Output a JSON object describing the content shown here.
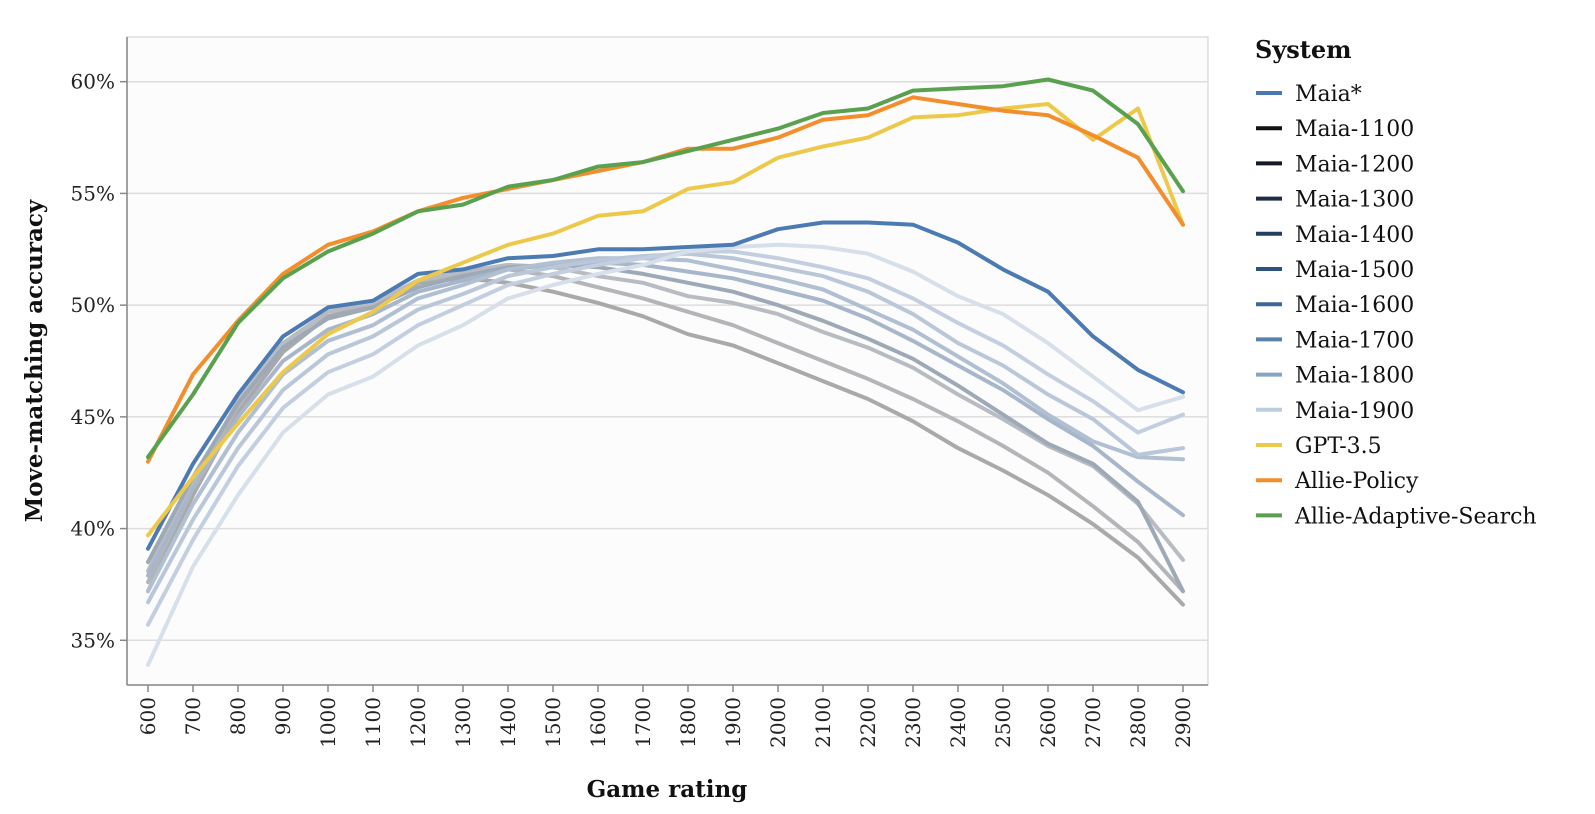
{
  "chart_data": {
    "type": "line",
    "xlabel": "Game rating",
    "ylabel": "Move-matching accuracy",
    "x": [
      600,
      700,
      800,
      900,
      1000,
      1100,
      1200,
      1300,
      1400,
      1500,
      1600,
      1700,
      1800,
      1900,
      2000,
      2100,
      2200,
      2300,
      2400,
      2500,
      2600,
      2700,
      2800,
      2900
    ],
    "ylim": [
      33,
      62
    ],
    "yticks": [
      35,
      40,
      45,
      50,
      55,
      60
    ],
    "ytick_labels": [
      "35%",
      "40%",
      "45%",
      "50%",
      "55%",
      "60%"
    ],
    "grid": "horizontal",
    "legend": {
      "title": "System",
      "position": "right"
    },
    "series": [
      {
        "name": "Maia-1100",
        "color": "#111111",
        "line_color": "#a9a9a9",
        "values": [
          37.2,
          41.5,
          45.2,
          47.9,
          49.5,
          50.0,
          51.0,
          51.2,
          51.0,
          50.6,
          50.1,
          49.5,
          48.7,
          48.2,
          47.4,
          46.6,
          45.8,
          44.8,
          43.6,
          42.6,
          41.5,
          40.2,
          38.7,
          36.6
        ]
      },
      {
        "name": "Maia-1200",
        "color": "#121a28",
        "line_color": "#b3b5b8",
        "values": [
          37.6,
          41.8,
          45.5,
          48.2,
          49.7,
          50.1,
          51.1,
          51.4,
          51.6,
          51.3,
          50.8,
          50.3,
          49.7,
          49.1,
          48.3,
          47.5,
          46.7,
          45.8,
          44.8,
          43.7,
          42.5,
          41.0,
          39.4,
          37.2
        ]
      },
      {
        "name": "Maia-1300",
        "color": "#1d2d45",
        "line_color": "#b8bcc2",
        "values": [
          38.1,
          42.1,
          45.7,
          48.3,
          49.7,
          50.1,
          51.1,
          51.5,
          51.8,
          51.7,
          51.3,
          51.0,
          50.4,
          50.1,
          49.6,
          48.8,
          48.1,
          47.2,
          46.0,
          44.9,
          43.7,
          42.8,
          41.1,
          38.6
        ]
      },
      {
        "name": "Maia-1400",
        "color": "#253e60",
        "line_color": "#9ea9b8",
        "values": [
          38.5,
          42.3,
          45.6,
          48.1,
          49.4,
          49.9,
          50.8,
          51.3,
          51.7,
          51.8,
          51.7,
          51.4,
          51.0,
          50.6,
          50.0,
          49.3,
          48.5,
          47.6,
          46.4,
          45.1,
          43.8,
          42.9,
          41.2,
          37.2
        ]
      },
      {
        "name": "Maia-1500",
        "color": "#2e5280",
        "line_color": "#a7b6ca",
        "values": [
          37.9,
          41.8,
          45.0,
          47.5,
          48.9,
          49.6,
          50.6,
          51.1,
          51.6,
          51.8,
          51.9,
          51.8,
          51.5,
          51.2,
          50.7,
          50.2,
          49.4,
          48.4,
          47.3,
          46.2,
          44.9,
          43.7,
          42.1,
          40.6
        ]
      },
      {
        "name": "Maia-1600",
        "color": "#3c6799",
        "line_color": "#b0bfd2",
        "values": [
          37.2,
          41.1,
          44.3,
          46.9,
          48.4,
          49.1,
          50.3,
          50.9,
          51.6,
          51.9,
          52.1,
          52.1,
          52.0,
          51.6,
          51.2,
          50.7,
          49.8,
          48.9,
          47.7,
          46.5,
          45.1,
          43.9,
          43.2,
          43.1
        ]
      },
      {
        "name": "Maia-1700",
        "color": "#5a80ae",
        "line_color": "#b9c7d9",
        "values": [
          36.7,
          40.4,
          43.6,
          46.2,
          47.8,
          48.6,
          49.8,
          50.5,
          51.3,
          51.7,
          52.0,
          52.2,
          52.3,
          52.1,
          51.7,
          51.3,
          50.6,
          49.6,
          48.3,
          47.3,
          46.0,
          44.9,
          43.3,
          43.6
        ]
      },
      {
        "name": "Maia-1800",
        "color": "#86a4c6",
        "line_color": "#c3cfe0",
        "values": [
          35.7,
          39.5,
          42.8,
          45.4,
          47.0,
          47.8,
          49.1,
          50.0,
          50.9,
          51.4,
          51.8,
          52.1,
          52.4,
          52.4,
          52.1,
          51.7,
          51.2,
          50.3,
          49.2,
          48.2,
          46.9,
          45.7,
          44.3,
          45.1
        ]
      },
      {
        "name": "Maia-1900",
        "color": "#bdcde0",
        "line_color": "#d6dfea",
        "values": [
          33.9,
          38.3,
          41.5,
          44.3,
          46.0,
          46.8,
          48.2,
          49.1,
          50.3,
          50.9,
          51.4,
          51.8,
          52.4,
          52.6,
          52.7,
          52.6,
          52.3,
          51.5,
          50.4,
          49.6,
          48.3,
          46.8,
          45.3,
          45.9
        ]
      },
      {
        "name": "Maia*",
        "color": "#4a78b0",
        "line_color": "#4c7ab3",
        "values": [
          39.1,
          42.9,
          46.0,
          48.6,
          49.9,
          50.2,
          51.4,
          51.6,
          52.1,
          52.2,
          52.5,
          52.5,
          52.6,
          52.7,
          53.4,
          53.7,
          53.7,
          53.6,
          52.8,
          51.6,
          50.6,
          48.6,
          47.1,
          46.1
        ]
      },
      {
        "name": "GPT-3.5",
        "color": "#ecc94b",
        "line_color": "#ecc94b",
        "values": [
          39.7,
          42.3,
          44.7,
          47.0,
          48.7,
          49.7,
          51.1,
          51.9,
          52.7,
          53.2,
          54.0,
          54.2,
          55.2,
          55.5,
          56.6,
          57.1,
          57.5,
          58.4,
          58.5,
          58.8,
          59.0,
          57.4,
          58.8,
          53.6
        ]
      },
      {
        "name": "Allie-Policy",
        "color": "#f28e2b",
        "line_color": "#f28e2b",
        "values": [
          43.0,
          46.9,
          49.3,
          51.4,
          52.7,
          53.3,
          54.2,
          54.8,
          55.2,
          55.6,
          56.0,
          56.4,
          57.0,
          57.0,
          57.5,
          58.3,
          58.5,
          59.3,
          59.0,
          58.7,
          58.5,
          57.6,
          56.6,
          53.6
        ]
      },
      {
        "name": "Allie-Adaptive-Search",
        "color": "#59a14f",
        "line_color": "#59a14f",
        "values": [
          43.2,
          46.0,
          49.2,
          51.2,
          52.4,
          53.2,
          54.2,
          54.5,
          55.3,
          55.6,
          56.2,
          56.4,
          56.9,
          57.4,
          57.9,
          58.6,
          58.8,
          59.6,
          59.7,
          59.8,
          60.1,
          59.6,
          58.1,
          55.1
        ]
      }
    ],
    "legend_order": [
      "Maia*",
      "Maia-1100",
      "Maia-1200",
      "Maia-1300",
      "Maia-1400",
      "Maia-1500",
      "Maia-1600",
      "Maia-1700",
      "Maia-1800",
      "Maia-1900",
      "GPT-3.5",
      "Allie-Policy",
      "Allie-Adaptive-Search"
    ]
  }
}
